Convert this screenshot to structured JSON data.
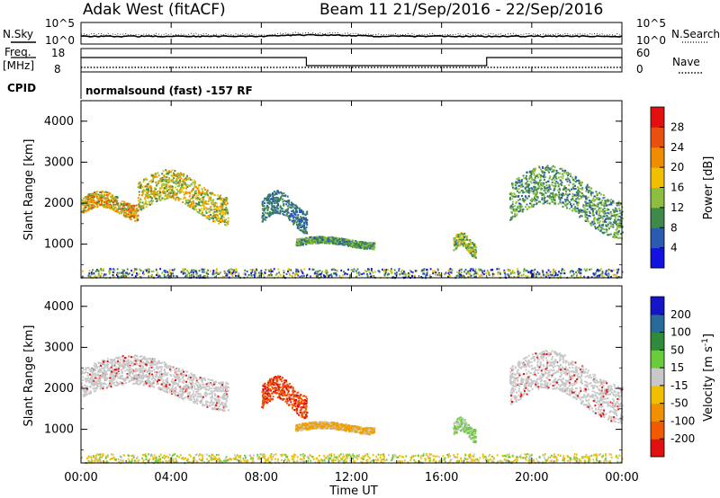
{
  "header": {
    "station": "Adak West (fitACF)",
    "beam_and_dates": "Beam 11  21/Sep/2016 - 22/Sep/2016"
  },
  "top_panels": {
    "nsky_label": "N.Sky",
    "nsearch_label": "N.Search",
    "freq_label_line1": "Freq.",
    "freq_label_line2": "[MHz]",
    "nave_label": "Nave",
    "cpid_label": "CPID",
    "cpid_text": "normalsound (fast) -157 RF",
    "noise_left_ticks": [
      "10^5",
      "10^0"
    ],
    "noise_right_ticks": [
      "10^5",
      "10^0"
    ],
    "freq_left_ticks": [
      "18",
      "8"
    ],
    "freq_right_ticks": [
      "60",
      "0"
    ],
    "freq_steps": [
      {
        "start_hour": 0,
        "end_hour": 10,
        "level": "high"
      },
      {
        "start_hour": 10,
        "end_hour": 18,
        "level": "low"
      },
      {
        "start_hour": 18,
        "end_hour": 24,
        "level": "high"
      }
    ]
  },
  "power_panel": {
    "ylabel": "Slant Range [km]",
    "yticks": [
      "1000",
      "2000",
      "3000",
      "4000"
    ],
    "colorbar_label": "Power [dB]",
    "colorbar_ticks": [
      "4",
      "8",
      "12",
      "16",
      "20",
      "24",
      "28"
    ],
    "colorbar_colors": [
      "#1212e0",
      "#2a5bb0",
      "#3f8a4a",
      "#8cbf3f",
      "#f0c000",
      "#f08c00",
      "#e85010",
      "#e01010"
    ]
  },
  "velocity_panel": {
    "ylabel": "Slant Range [km]",
    "yticks": [
      "1000",
      "2000",
      "3000",
      "4000"
    ],
    "colorbar_label": "Velocity [m s",
    "colorbar_label_exp": "-1",
    "colorbar_label_end": "]",
    "colorbar_ticks": [
      "200",
      "100",
      "50",
      "15",
      "-15",
      "-50",
      "-100",
      "-200"
    ],
    "colorbar_colors": [
      "#1414c8",
      "#2a6a9a",
      "#2f8a3a",
      "#6acc3a",
      "#c8c8c8",
      "#f0c000",
      "#f09000",
      "#f05a00",
      "#e01010"
    ]
  },
  "x_axis": {
    "ticks": [
      "00:00",
      "04:00",
      "08:00",
      "12:00",
      "16:00",
      "20:00",
      "00:00"
    ],
    "label": "Time UT"
  },
  "chart_data": {
    "type": "heatmap",
    "x_range_hours": [
      0,
      24
    ],
    "y_range_km": [
      180,
      4500
    ],
    "power_scatter_regions": [
      {
        "hours": [
          0,
          2.5
        ],
        "range_km": [
          1600,
          2300
        ],
        "peak_db": 28
      },
      {
        "hours": [
          2.5,
          6.5
        ],
        "range_km": [
          1500,
          2800
        ],
        "peak_db": 24
      },
      {
        "hours": [
          8,
          10
        ],
        "range_km": [
          1300,
          2300
        ],
        "peak_db": 12
      },
      {
        "hours": [
          9.5,
          13
        ],
        "range_km": [
          900,
          1200
        ],
        "peak_db": 16
      },
      {
        "hours": [
          16.5,
          17.5
        ],
        "range_km": [
          700,
          1300
        ],
        "peak_db": 20
      },
      {
        "hours": [
          19,
          24
        ],
        "range_km": [
          1200,
          2900
        ],
        "peak_db": 16
      }
    ],
    "velocity_scatter_regions": [
      {
        "hours": [
          0,
          6.5
        ],
        "range_km": [
          1500,
          2800
        ],
        "velocity_ms": 0
      },
      {
        "hours": [
          8,
          10
        ],
        "range_km": [
          1300,
          2300
        ],
        "velocity_ms": -100
      },
      {
        "hours": [
          9.5,
          13
        ],
        "range_km": [
          900,
          1200
        ],
        "velocity_ms": -50
      },
      {
        "hours": [
          16.5,
          17.5
        ],
        "range_km": [
          700,
          1300
        ],
        "velocity_ms": 30
      },
      {
        "hours": [
          19,
          24
        ],
        "range_km": [
          1200,
          2900
        ],
        "velocity_ms": 0
      }
    ]
  }
}
